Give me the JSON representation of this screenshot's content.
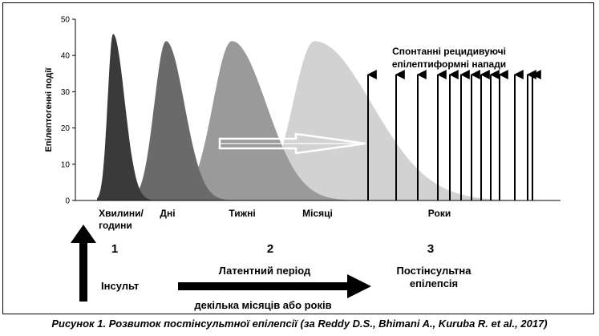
{
  "chart_data": {
    "type": "area",
    "ylabel": "Епілептогенні події",
    "ylim": [
      0,
      50
    ],
    "yticks": [
      0,
      10,
      20,
      30,
      40,
      50
    ],
    "categories": [
      "Хвилини/\nгодини",
      "Дні",
      "Тижні",
      "Місяці",
      "Роки"
    ],
    "series": [
      {
        "category": "Хвилини/ години",
        "peak": 46,
        "color": "#3a3a3a"
      },
      {
        "category": "Дні",
        "peak": 44,
        "color": "#6a6a6a"
      },
      {
        "category": "Тижні",
        "peak": 44,
        "color": "#9a9a9a"
      },
      {
        "category": "Місяці",
        "peak": 44,
        "color": "#d2d2d2"
      }
    ],
    "seizure_arrow_count": 13,
    "annotations": {
      "seizures_line1": "Спонтанні рецидивуючі",
      "seizures_line2": "епілептиформні напади"
    }
  },
  "stages": [
    {
      "number": "1",
      "label": "Інсульт"
    },
    {
      "number": "2",
      "label": "Латентний період",
      "sublabel": "декілька місяців або років"
    },
    {
      "number": "3",
      "label_line1": "Постінсультна",
      "label_line2": "епілепсія"
    }
  ],
  "caption": "Рисунок 1. Розвиток постінсультної епілепсії (за Reddy D.S., Bhimani A., Kuruba R. et al., 2017)"
}
